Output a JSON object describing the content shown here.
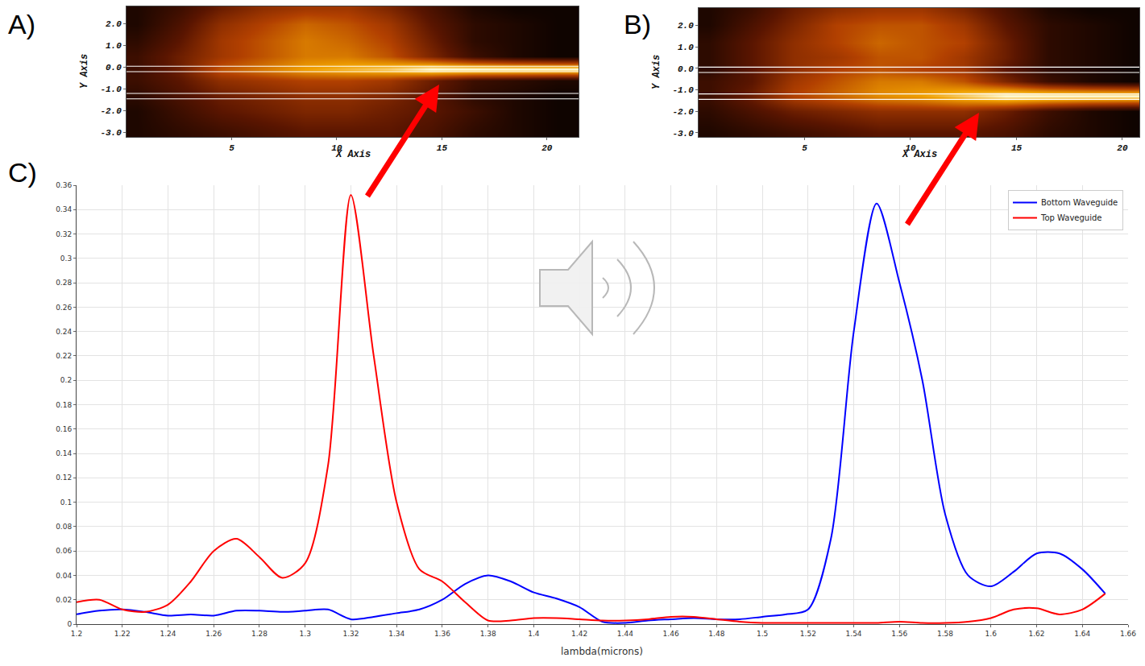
{
  "chart_data": [
    {
      "type": "heatmap",
      "panel_label": "A)",
      "x_label": "X Axis",
      "y_label": "Y Axis",
      "x": [
        0.5,
        2.5,
        4.5,
        6.5,
        8.5,
        10.5,
        12.5,
        14.5,
        16.5,
        18.5,
        20.5
      ],
      "y": [
        -3,
        -2,
        -1.3,
        -0.6,
        -0.1,
        0.5,
        1.2,
        2,
        2.7
      ],
      "z": [
        [
          0.1,
          0.15,
          0.2,
          0.25,
          0.3,
          0.3,
          0.3,
          0.25,
          0.15,
          0.1,
          0.05
        ],
        [
          0.1,
          0.2,
          0.3,
          0.35,
          0.4,
          0.4,
          0.35,
          0.3,
          0.2,
          0.1,
          0.05
        ],
        [
          0.15,
          0.25,
          0.35,
          0.4,
          0.45,
          0.45,
          0.4,
          0.3,
          0.15,
          0.1,
          0.05
        ],
        [
          0.2,
          0.3,
          0.45,
          0.5,
          0.55,
          0.55,
          0.5,
          0.35,
          0.2,
          0.15,
          0.1
        ],
        [
          0.2,
          0.35,
          0.6,
          0.7,
          0.8,
          0.85,
          0.9,
          1,
          1,
          1,
          1
        ],
        [
          0.2,
          0.35,
          0.5,
          0.6,
          0.7,
          0.7,
          0.6,
          0.4,
          0.2,
          0.1,
          0.05
        ],
        [
          0.15,
          0.3,
          0.5,
          0.6,
          0.7,
          0.65,
          0.55,
          0.35,
          0.15,
          0.1,
          0.05
        ],
        [
          0.1,
          0.25,
          0.45,
          0.55,
          0.65,
          0.6,
          0.5,
          0.3,
          0.15,
          0.1,
          0.05
        ],
        [
          0.1,
          0.2,
          0.35,
          0.45,
          0.5,
          0.5,
          0.4,
          0.25,
          0.1,
          0.05,
          0.05
        ]
      ],
      "zlim": [
        0,
        1
      ],
      "waveguide_edges": [
        0.05,
        -0.2,
        -1.2,
        -1.45
      ],
      "xlim": [
        0,
        21.5
      ],
      "ylim": [
        -3.2,
        2.8
      ],
      "xticks": [
        5,
        10,
        15,
        20
      ],
      "yticks": [
        {
          "value": 2,
          "label": "2.0"
        },
        {
          "value": 1,
          "label": "1.0"
        },
        {
          "value": 0,
          "label": "0.0"
        },
        {
          "value": -1,
          "label": "-1.0"
        },
        {
          "value": -2,
          "label": "-2.0"
        },
        {
          "value": -3,
          "label": "-3.0"
        }
      ],
      "grid": false
    },
    {
      "type": "heatmap",
      "panel_label": "B)",
      "x_label": "X Axis",
      "y_label": "Y Axis",
      "x": [
        0.5,
        2.5,
        4.5,
        6.5,
        8.5,
        10.5,
        12.5,
        14.5,
        16.5,
        18.5,
        20.5
      ],
      "y": [
        -3,
        -2,
        -1.3,
        -0.6,
        -0.1,
        0.5,
        1.2,
        2,
        2.7
      ],
      "z": [
        [
          0.1,
          0.15,
          0.2,
          0.25,
          0.3,
          0.3,
          0.3,
          0.25,
          0.15,
          0.1,
          0.05
        ],
        [
          0.15,
          0.25,
          0.35,
          0.4,
          0.45,
          0.45,
          0.45,
          0.35,
          0.2,
          0.1,
          0.05
        ],
        [
          0.2,
          0.35,
          0.55,
          0.65,
          0.75,
          0.8,
          0.9,
          1,
          1,
          1,
          1
        ],
        [
          0.2,
          0.3,
          0.5,
          0.6,
          0.7,
          0.7,
          0.6,
          0.4,
          0.2,
          0.1,
          0.05
        ],
        [
          0.15,
          0.3,
          0.45,
          0.55,
          0.6,
          0.55,
          0.5,
          0.3,
          0.15,
          0.1,
          0.05
        ],
        [
          0.15,
          0.3,
          0.45,
          0.5,
          0.6,
          0.6,
          0.5,
          0.35,
          0.15,
          0.1,
          0.05
        ],
        [
          0.15,
          0.3,
          0.45,
          0.55,
          0.65,
          0.6,
          0.55,
          0.35,
          0.15,
          0.1,
          0.05
        ],
        [
          0.1,
          0.25,
          0.4,
          0.55,
          0.6,
          0.6,
          0.5,
          0.3,
          0.15,
          0.1,
          0.05
        ],
        [
          0.1,
          0.2,
          0.35,
          0.45,
          0.5,
          0.5,
          0.4,
          0.25,
          0.1,
          0.05,
          0.05
        ]
      ],
      "zlim": [
        0,
        1
      ],
      "waveguide_edges": [
        0.05,
        -0.2,
        -1.2,
        -1.45
      ],
      "xlim": [
        0,
        20.8
      ],
      "ylim": [
        -3.2,
        2.8
      ],
      "xticks": [
        5,
        10,
        15,
        20
      ],
      "yticks": [
        {
          "value": 2,
          "label": "2.0"
        },
        {
          "value": 1,
          "label": "1.0"
        },
        {
          "value": 0,
          "label": "0.0"
        },
        {
          "value": -1,
          "label": "-1.0"
        },
        {
          "value": -2,
          "label": "-2.0"
        },
        {
          "value": -3,
          "label": "-3.0"
        }
      ],
      "grid": false
    },
    {
      "type": "line",
      "panel_label": "C)",
      "x_label": "lambda(microns)",
      "x": [
        1.2,
        1.21,
        1.22,
        1.23,
        1.24,
        1.25,
        1.26,
        1.27,
        1.28,
        1.29,
        1.3,
        1.31,
        1.32,
        1.33,
        1.34,
        1.35,
        1.36,
        1.37,
        1.38,
        1.39,
        1.4,
        1.41,
        1.42,
        1.43,
        1.44,
        1.45,
        1.46,
        1.47,
        1.48,
        1.49,
        1.5,
        1.51,
        1.52,
        1.53,
        1.54,
        1.55,
        1.56,
        1.57,
        1.58,
        1.59,
        1.6,
        1.61,
        1.62,
        1.63,
        1.64,
        1.65
      ],
      "series": [
        {
          "name": "Bottom Waveguide",
          "color": "#0000ff",
          "values": [
            0.008,
            0.011,
            0.012,
            0.01,
            0.007,
            0.008,
            0.007,
            0.011,
            0.011,
            0.01,
            0.011,
            0.012,
            0.004,
            0.006,
            0.009,
            0.012,
            0.02,
            0.033,
            0.04,
            0.035,
            0.026,
            0.021,
            0.014,
            0.002,
            0.001,
            0.003,
            0.004,
            0.005,
            0.004,
            0.004,
            0.006,
            0.008,
            0.012,
            0.07,
            0.24,
            0.345,
            0.28,
            0.2,
            0.09,
            0.04,
            0.031,
            0.043,
            0.058,
            0.058,
            0.045,
            0.025
          ]
        },
        {
          "name": "Top Waveguide",
          "color": "#ff0000",
          "values": [
            0.018,
            0.02,
            0.012,
            0.01,
            0.016,
            0.035,
            0.06,
            0.07,
            0.055,
            0.038,
            0.05,
            0.13,
            0.352,
            0.22,
            0.1,
            0.045,
            0.035,
            0.018,
            0.003,
            0.003,
            0.005,
            0.005,
            0.004,
            0.003,
            0.003,
            0.004,
            0.006,
            0.006,
            0.004,
            0.002,
            0.001,
            0.001,
            0.001,
            0.001,
            0.001,
            0.001,
            0.002,
            0.001,
            0.001,
            0.002,
            0.005,
            0.012,
            0.013,
            0.008,
            0.012,
            0.025
          ]
        }
      ],
      "xlim": [
        1.2,
        1.66
      ],
      "ylim": [
        0,
        0.36
      ],
      "xticks": [
        1.2,
        1.22,
        1.24,
        1.26,
        1.28,
        1.3,
        1.32,
        1.34,
        1.36,
        1.38,
        1.4,
        1.42,
        1.44,
        1.46,
        1.48,
        1.5,
        1.52,
        1.54,
        1.56,
        1.58,
        1.6,
        1.62,
        1.64,
        1.66
      ],
      "yticks": [
        0,
        0.02,
        0.04,
        0.06,
        0.08,
        0.1,
        0.12,
        0.14,
        0.16,
        0.18,
        0.2,
        0.22,
        0.24,
        0.26,
        0.28,
        0.3,
        0.32,
        0.34,
        0.36
      ],
      "grid": true,
      "legend": "upper right"
    }
  ]
}
